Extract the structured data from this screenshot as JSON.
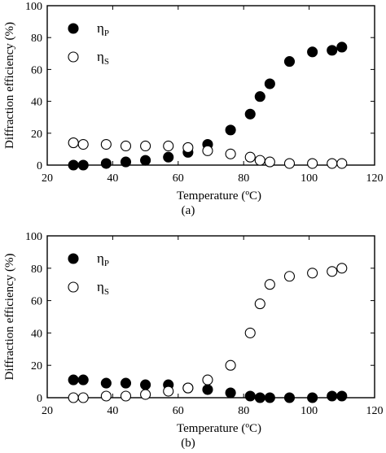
{
  "chart_data": [
    {
      "type": "scatter",
      "caption": "(a)",
      "xlabel": "Temperature (ºC)",
      "ylabel": "Diffraction efficiency (%)",
      "xlim": [
        20,
        120
      ],
      "ylim": [
        0,
        100
      ],
      "xticks": [
        "20",
        "40",
        "60",
        "80",
        "100",
        "120"
      ],
      "yticks": [
        "0",
        "20",
        "40",
        "60",
        "80",
        "100"
      ],
      "grid": false,
      "legend_placement": "top-left",
      "series": [
        {
          "name": "ηP",
          "name_main": "η",
          "name_sub": "P",
          "marker": "filled-circle",
          "x": [
            28,
            31,
            38,
            44,
            50,
            57,
            63,
            69,
            76,
            82,
            85,
            88,
            94,
            101,
            107,
            110
          ],
          "y": [
            0,
            0,
            1,
            2,
            3,
            5,
            8,
            13,
            22,
            32,
            43,
            51,
            65,
            71,
            72,
            74
          ]
        },
        {
          "name": "ηS",
          "name_main": "η",
          "name_sub": "S",
          "marker": "open-circle",
          "x": [
            28,
            31,
            38,
            44,
            50,
            57,
            63,
            69,
            76,
            82,
            85,
            88,
            94,
            101,
            107,
            110
          ],
          "y": [
            14,
            13,
            13,
            12,
            12,
            12,
            11,
            9,
            7,
            5,
            3,
            2,
            1,
            1,
            1,
            1
          ]
        }
      ]
    },
    {
      "type": "scatter",
      "caption": "(b)",
      "xlabel": "Temperature (ºC)",
      "ylabel": "Diffraction efficiency (%)",
      "xlim": [
        20,
        120
      ],
      "ylim": [
        0,
        100
      ],
      "xticks": [
        "20",
        "40",
        "60",
        "80",
        "100",
        "120"
      ],
      "yticks": [
        "0",
        "20",
        "40",
        "60",
        "80",
        "100"
      ],
      "grid": false,
      "legend_placement": "top-left",
      "series": [
        {
          "name": "ηP",
          "name_main": "η",
          "name_sub": "P",
          "marker": "filled-circle",
          "x": [
            28,
            31,
            38,
            44,
            50,
            57,
            63,
            69,
            76,
            82,
            85,
            88,
            94,
            101,
            107,
            110
          ],
          "y": [
            11,
            11,
            9,
            9,
            8,
            8,
            6,
            5,
            3,
            1,
            0,
            0,
            0,
            0,
            1,
            1
          ]
        },
        {
          "name": "ηS",
          "name_main": "η",
          "name_sub": "S",
          "marker": "open-circle",
          "x": [
            28,
            31,
            38,
            44,
            50,
            57,
            63,
            69,
            76,
            82,
            85,
            88,
            94,
            101,
            107,
            110
          ],
          "y": [
            0,
            0,
            1,
            1,
            2,
            4,
            6,
            11,
            20,
            40,
            58,
            70,
            75,
            77,
            78,
            80
          ]
        }
      ]
    }
  ]
}
